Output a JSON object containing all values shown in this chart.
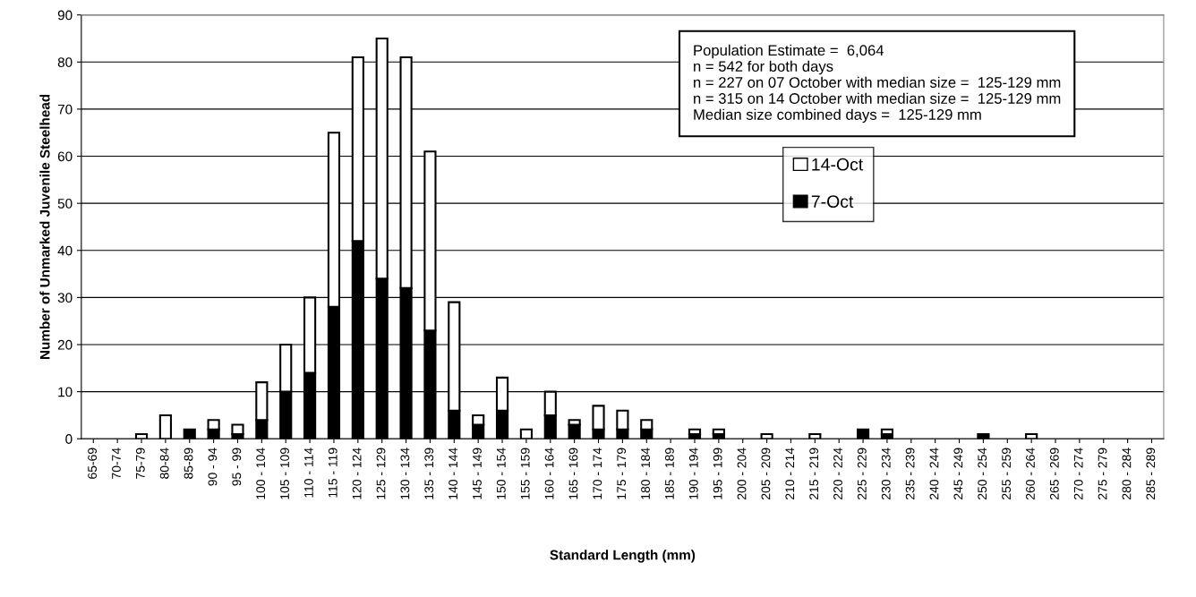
{
  "chart_data": {
    "type": "bar",
    "stacked": true,
    "xlabel": "Standard Length (mm)",
    "ylabel": "Number of Unmarked Juvenile Steelhead",
    "categories": [
      "65-69",
      "70-74",
      "75-79",
      "80-84",
      "85-89",
      "90 - 94",
      "95 - 99",
      "100 - 104",
      "105 - 109",
      "110 - 114",
      "115 - 119",
      "120 - 124",
      "125 - 129",
      "130 - 134",
      "135 - 139",
      "140 - 144",
      "145 - 149",
      "150 - 154",
      "155 - 159",
      "160 - 164",
      "165 - 169",
      "170 - 174",
      "175 - 179",
      "180 - 184",
      "185 - 189",
      "190 - 194",
      "195 - 199",
      "200 - 204",
      "205 - 209",
      "210 - 214",
      "215 - 219",
      "220 - 224",
      "225 - 229",
      "230 - 234",
      "235 - 239",
      "240 - 244",
      "245 - 249",
      "250 - 254",
      "255 - 259",
      "260 - 264",
      "265 - 269",
      "270 - 274",
      "275 - 279",
      "280 - 284",
      "285 - 289"
    ],
    "series": [
      {
        "name": "7-Oct",
        "color": "#000000",
        "values": [
          0,
          0,
          0,
          0,
          2,
          2,
          1,
          4,
          10,
          14,
          28,
          42,
          34,
          32,
          23,
          6,
          3,
          6,
          0,
          5,
          3,
          2,
          2,
          2,
          0,
          1,
          1,
          0,
          0,
          0,
          0,
          0,
          2,
          1,
          0,
          0,
          0,
          1,
          0,
          0,
          0,
          0,
          0,
          0,
          0
        ]
      },
      {
        "name": "14-Oct",
        "color": "#ffffff",
        "values": [
          0,
          0,
          1,
          5,
          0,
          2,
          2,
          8,
          10,
          16,
          37,
          39,
          51,
          49,
          38,
          23,
          2,
          7,
          2,
          5,
          1,
          5,
          4,
          2,
          0,
          1,
          1,
          0,
          1,
          0,
          1,
          0,
          0,
          1,
          0,
          0,
          0,
          0,
          0,
          1,
          0,
          0,
          0,
          0,
          0
        ]
      }
    ],
    "ylim": [
      0,
      90
    ],
    "yticks": [
      0,
      10,
      20,
      30,
      40,
      50,
      60,
      70,
      80,
      90
    ],
    "grid": "y",
    "legend": "right",
    "annotations": [
      "Population Estimate =  6,064\nn = 542 for both days\nn = 227 on 07 October with median size =  125-129 mm\nn = 315 on 14 October with median size =  125-129 mm\nMedian size combined days =  125-129 mm"
    ]
  }
}
